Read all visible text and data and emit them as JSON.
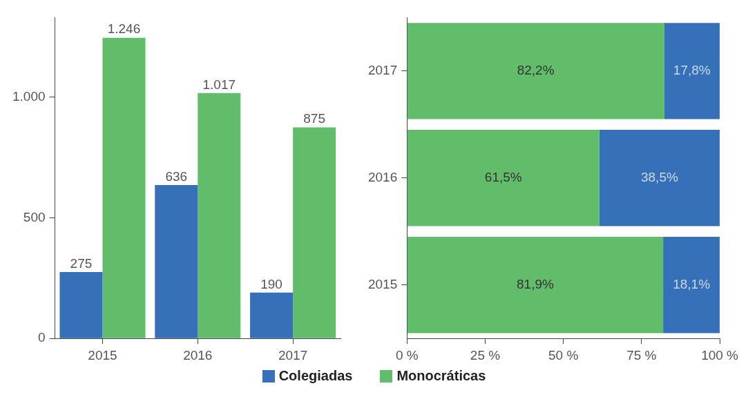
{
  "chart_data": [
    {
      "type": "bar",
      "categories": [
        "2015",
        "2016",
        "2017"
      ],
      "series": [
        {
          "name": "Colegiadas",
          "color": "#3670b8",
          "values": [
            275,
            636,
            190
          ],
          "value_labels": [
            "275",
            "636",
            "190"
          ]
        },
        {
          "name": "Monocráticas",
          "color": "#62bd6a",
          "values": [
            1246,
            1017,
            875
          ],
          "value_labels": [
            "1.246",
            "1.017",
            "875"
          ]
        }
      ],
      "ylim": [
        0,
        1330
      ],
      "yticks": [
        0,
        500,
        {
          "value": 1000,
          "label": "1.000"
        }
      ],
      "grid": false,
      "legend": "bottom"
    },
    {
      "type": "bar",
      "orientation": "horizontal",
      "stacked": true,
      "categories": [
        "2017",
        "2016",
        "2015"
      ],
      "series": [
        {
          "name": "Monocráticas",
          "color": "#62bd6a",
          "values": [
            82.2,
            61.5,
            81.9
          ],
          "value_labels": [
            "82,2%",
            "61,5%",
            "81,9%"
          ]
        },
        {
          "name": "Colegiadas",
          "color": "#3670b8",
          "values": [
            17.8,
            38.5,
            18.1
          ],
          "value_labels": [
            "17,8%",
            "38,5%",
            "18,1%"
          ]
        }
      ],
      "xlim": [
        0,
        100
      ],
      "xticks": [
        {
          "value": 0,
          "label": "0 %"
        },
        {
          "value": 25,
          "label": "25 %"
        },
        {
          "value": 50,
          "label": "50 %"
        },
        {
          "value": 75,
          "label": "75 %"
        },
        {
          "value": 100,
          "label": "100 %"
        }
      ],
      "grid": false,
      "legend": "bottom"
    }
  ]
}
